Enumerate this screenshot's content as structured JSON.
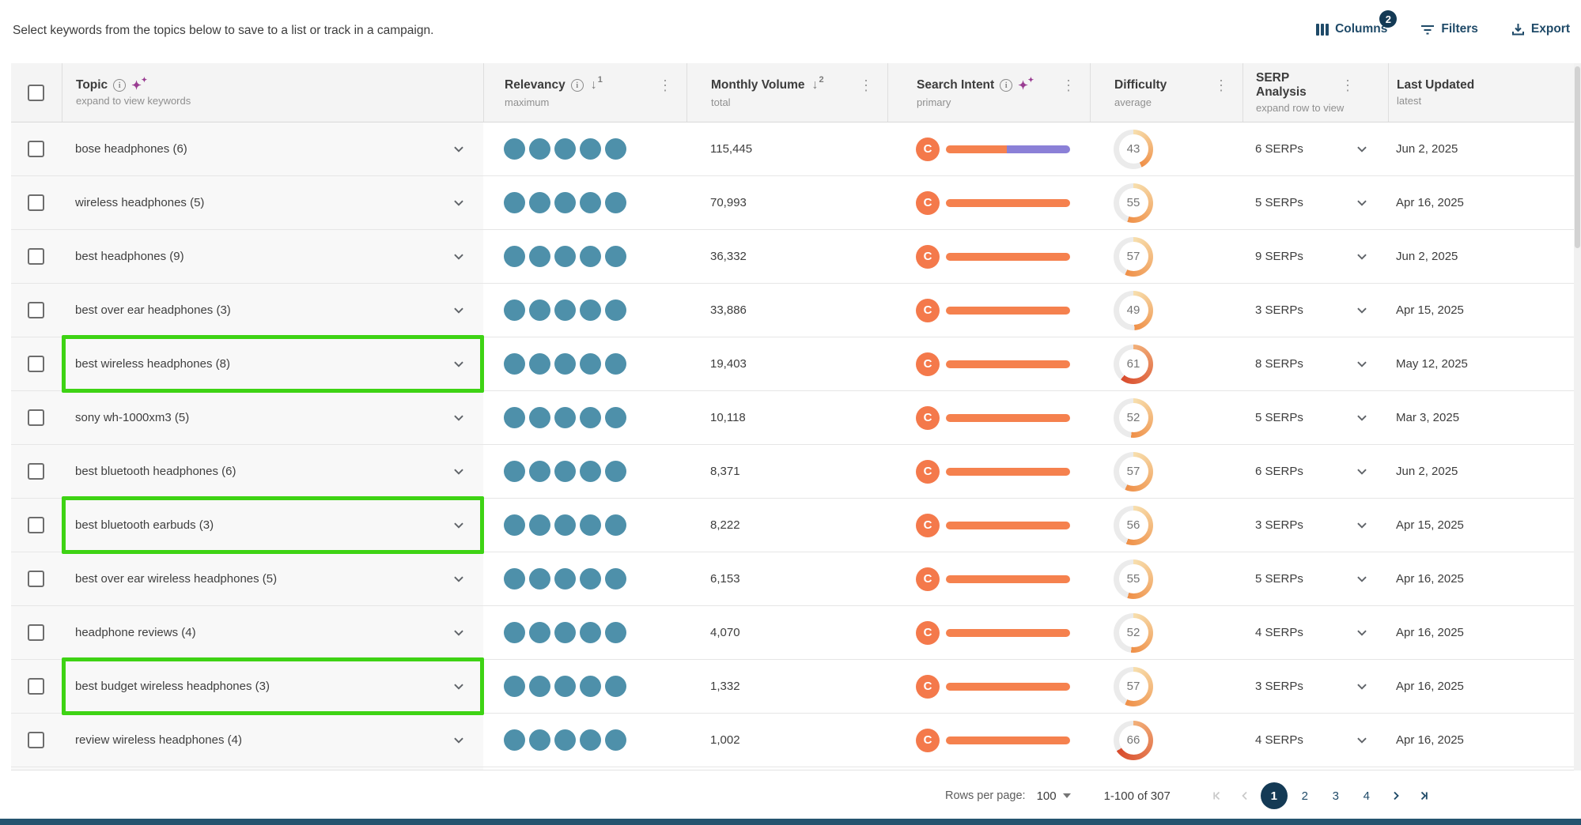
{
  "intro": "Select keywords from the topics below to save to a list or track in a campaign.",
  "toolbar": {
    "columns_label": "Columns",
    "columns_badge": "2",
    "filters_label": "Filters",
    "export_label": "Export"
  },
  "table": {
    "columns": [
      {
        "label": "Topic",
        "sub": "expand to view keywords"
      },
      {
        "label": "Relevancy",
        "sub": "maximum",
        "sort_order": "1"
      },
      {
        "label": "Monthly Volume",
        "sub": "total",
        "sort_order": "2"
      },
      {
        "label": "Search Intent",
        "sub": "primary"
      },
      {
        "label": "Difficulty",
        "sub": "average"
      },
      {
        "label": "SERP Analysis",
        "sub": "expand row to view"
      },
      {
        "label": "Last Updated",
        "sub": "latest"
      }
    ],
    "rows": [
      {
        "topic": "bose headphones (6)",
        "highlighted": false,
        "relevancy": 5,
        "volume": "115,445",
        "intent": {
          "label": "C",
          "segments": [
            {
              "color": "#f5814e",
              "pct": 49
            },
            {
              "color": "#8b80d7",
              "pct": 51
            }
          ]
        },
        "difficulty": 43,
        "serps": "6 SERPs",
        "updated": "Jun 2, 2025"
      },
      {
        "topic": "wireless headphones (5)",
        "highlighted": false,
        "relevancy": 5,
        "volume": "70,993",
        "intent": {
          "label": "C",
          "segments": [
            {
              "color": "#f5814e",
              "pct": 100
            }
          ]
        },
        "difficulty": 55,
        "serps": "5 SERPs",
        "updated": "Apr 16, 2025"
      },
      {
        "topic": "best headphones (9)",
        "highlighted": false,
        "relevancy": 5,
        "volume": "36,332",
        "intent": {
          "label": "C",
          "segments": [
            {
              "color": "#f5814e",
              "pct": 100
            }
          ]
        },
        "difficulty": 57,
        "serps": "9 SERPs",
        "updated": "Jun 2, 2025"
      },
      {
        "topic": "best over ear headphones (3)",
        "highlighted": false,
        "relevancy": 5,
        "volume": "33,886",
        "intent": {
          "label": "C",
          "segments": [
            {
              "color": "#f5814e",
              "pct": 100
            }
          ]
        },
        "difficulty": 49,
        "serps": "3 SERPs",
        "updated": "Apr 15, 2025"
      },
      {
        "topic": "best wireless headphones (8)",
        "highlighted": true,
        "relevancy": 5,
        "volume": "19,403",
        "intent": {
          "label": "C",
          "segments": [
            {
              "color": "#f5814e",
              "pct": 100
            }
          ]
        },
        "difficulty": 61,
        "serps": "8 SERPs",
        "updated": "May 12, 2025"
      },
      {
        "topic": "sony wh-1000xm3 (5)",
        "highlighted": false,
        "relevancy": 5,
        "volume": "10,118",
        "intent": {
          "label": "C",
          "segments": [
            {
              "color": "#f5814e",
              "pct": 100
            }
          ]
        },
        "difficulty": 52,
        "serps": "5 SERPs",
        "updated": "Mar 3, 2025"
      },
      {
        "topic": "best bluetooth headphones (6)",
        "highlighted": false,
        "relevancy": 5,
        "volume": "8,371",
        "intent": {
          "label": "C",
          "segments": [
            {
              "color": "#f5814e",
              "pct": 100
            }
          ]
        },
        "difficulty": 57,
        "serps": "6 SERPs",
        "updated": "Jun 2, 2025"
      },
      {
        "topic": "best bluetooth earbuds (3)",
        "highlighted": true,
        "relevancy": 5,
        "volume": "8,222",
        "intent": {
          "label": "C",
          "segments": [
            {
              "color": "#f5814e",
              "pct": 100
            }
          ]
        },
        "difficulty": 56,
        "serps": "3 SERPs",
        "updated": "Apr 15, 2025"
      },
      {
        "topic": "best over ear wireless headphones (5)",
        "highlighted": false,
        "relevancy": 5,
        "volume": "6,153",
        "intent": {
          "label": "C",
          "segments": [
            {
              "color": "#f5814e",
              "pct": 100
            }
          ]
        },
        "difficulty": 55,
        "serps": "5 SERPs",
        "updated": "Apr 16, 2025"
      },
      {
        "topic": "headphone reviews (4)",
        "highlighted": false,
        "relevancy": 5,
        "volume": "4,070",
        "intent": {
          "label": "C",
          "segments": [
            {
              "color": "#f5814e",
              "pct": 100
            }
          ]
        },
        "difficulty": 52,
        "serps": "4 SERPs",
        "updated": "Apr 16, 2025"
      },
      {
        "topic": "best budget wireless headphones (3)",
        "highlighted": true,
        "relevancy": 5,
        "volume": "1,332",
        "intent": {
          "label": "C",
          "segments": [
            {
              "color": "#f5814e",
              "pct": 100
            }
          ]
        },
        "difficulty": 57,
        "serps": "3 SERPs",
        "updated": "Apr 16, 2025"
      },
      {
        "topic": "review wireless headphones (4)",
        "highlighted": false,
        "relevancy": 5,
        "volume": "1,002",
        "intent": {
          "label": "C",
          "segments": [
            {
              "color": "#f5814e",
              "pct": 100
            }
          ]
        },
        "difficulty": 66,
        "serps": "4 SERPs",
        "updated": "Apr 16, 2025"
      }
    ]
  },
  "pagination": {
    "rows_per_page_label": "Rows per page:",
    "rows_per_page_value": "100",
    "range": "1-100 of 307",
    "pages": [
      "1",
      "2",
      "3",
      "4"
    ],
    "current_page": "1"
  },
  "colors": {
    "accent_navy": "#1f4a68",
    "badge_navy": "#143a55",
    "intent_orange": "#f5814e",
    "intent_purple": "#8b80d7",
    "relevancy_teal": "#4e90aa",
    "highlight_green": "#3ed314",
    "bottom_bar": "#24546f"
  }
}
